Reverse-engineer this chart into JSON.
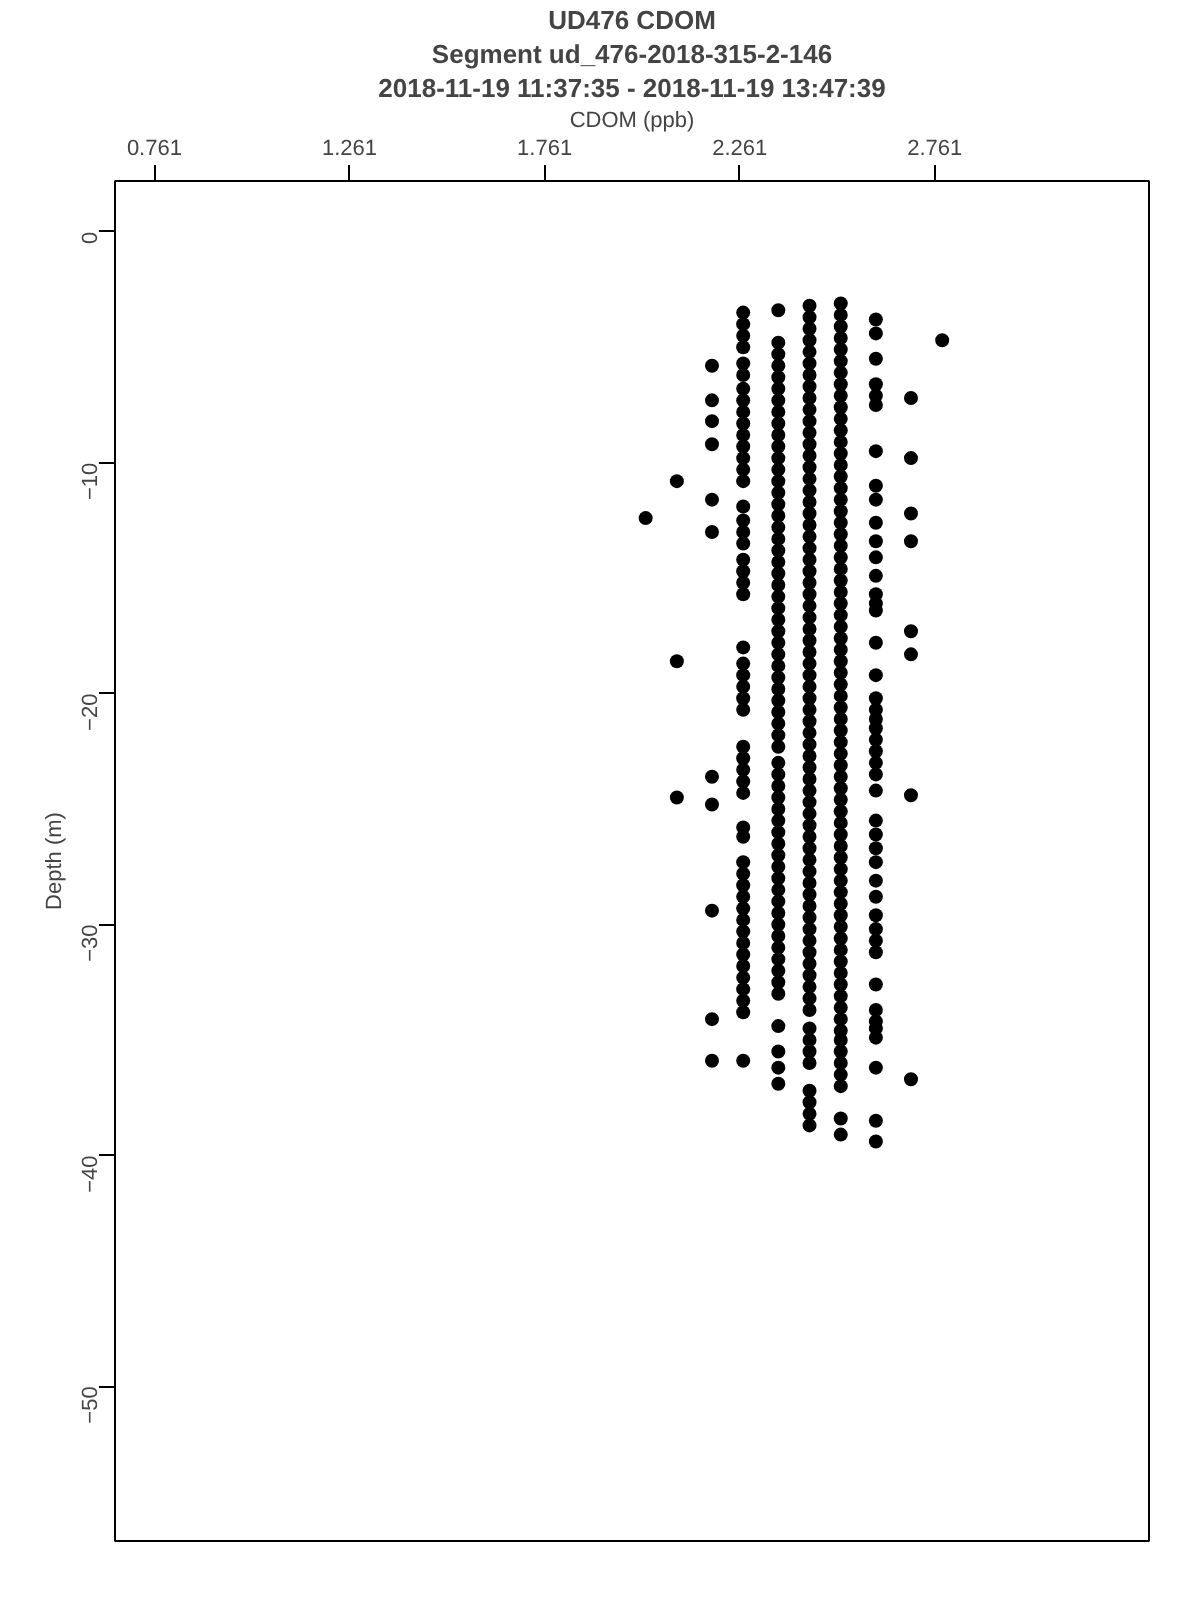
{
  "chart_data": {
    "type": "scatter",
    "title": "UD476 CDOM",
    "subtitle": "Segment ud_476-2018-315-2-146",
    "annotations": [
      "2018-11-19 11:37:35 - 2018-11-19 13:47:39"
    ],
    "xlabel": "CDOM (ppb)",
    "ylabel": "Depth (m)",
    "xlim": [
      0.66,
      3.31
    ],
    "ylim": [
      -56.7,
      2.2
    ],
    "xticks": [
      0.761,
      1.261,
      1.761,
      2.261,
      2.761
    ],
    "yticks": [
      0,
      -10,
      -20,
      -30,
      -40,
      -50
    ],
    "grid": false,
    "marker": "circle",
    "series": [
      {
        "color": "#000000",
        "x": [
          2.44,
          2.44,
          2.44,
          2.44,
          2.44,
          2.44,
          2.44,
          2.44,
          2.44,
          2.44,
          2.44,
          2.44,
          2.44,
          2.44,
          2.44,
          2.44,
          2.44,
          2.44,
          2.44,
          2.44,
          2.44,
          2.44,
          2.44,
          2.44,
          2.44,
          2.44,
          2.44,
          2.44,
          2.44,
          2.44,
          2.44,
          2.44,
          2.44,
          2.44,
          2.44,
          2.44,
          2.44,
          2.44,
          2.44,
          2.44,
          2.44,
          2.44,
          2.44,
          2.44,
          2.44,
          2.44,
          2.44,
          2.44,
          2.44,
          2.44,
          2.44,
          2.44,
          2.44,
          2.44,
          2.44,
          2.44,
          2.44,
          2.44,
          2.44,
          2.44,
          2.44,
          2.44,
          2.44,
          2.44,
          2.44,
          2.44,
          2.44,
          2.44,
          2.44,
          2.44
        ],
        "values": [
          -3.2,
          -3.7,
          -4.2,
          -4.7,
          -5.2,
          -5.7,
          -6.2,
          -6.7,
          -7.2,
          -7.7,
          -8.2,
          -8.7,
          -9.2,
          -9.7,
          -10.2,
          -10.7,
          -11.2,
          -11.7,
          -12.2,
          -12.7,
          -13.2,
          -13.7,
          -14.2,
          -14.7,
          -15.2,
          -15.7,
          -16.2,
          -16.7,
          -17.2,
          -17.7,
          -18.2,
          -18.7,
          -19.2,
          -19.7,
          -20.2,
          -20.7,
          -21.2,
          -21.7,
          -22.2,
          -22.7,
          -23.2,
          -23.7,
          -24.2,
          -24.7,
          -25.2,
          -25.7,
          -26.2,
          -26.7,
          -27.2,
          -27.7,
          -28.2,
          -28.7,
          -29.2,
          -29.7,
          -30.2,
          -30.7,
          -31.2,
          -31.7,
          -32.2,
          -32.7,
          -33.2,
          -33.7,
          -34.5,
          -35,
          -35.5,
          -36,
          -37.2,
          -37.7,
          -38.2,
          -38.7
        ]
      },
      {
        "color": "#000000",
        "x": [
          2.52,
          2.52,
          2.52,
          2.52,
          2.52,
          2.52,
          2.52,
          2.52,
          2.52,
          2.52,
          2.52,
          2.52,
          2.52,
          2.52,
          2.52,
          2.52,
          2.52,
          2.52,
          2.52,
          2.52,
          2.52,
          2.52,
          2.52,
          2.52,
          2.52,
          2.52,
          2.52,
          2.52,
          2.52,
          2.52,
          2.52,
          2.52,
          2.52,
          2.52,
          2.52,
          2.52,
          2.52,
          2.52,
          2.52,
          2.52,
          2.52,
          2.52,
          2.52,
          2.52,
          2.52,
          2.52,
          2.52,
          2.52,
          2.52,
          2.52,
          2.52,
          2.52,
          2.52,
          2.52,
          2.52,
          2.52,
          2.52,
          2.52,
          2.52,
          2.52,
          2.52,
          2.52,
          2.52,
          2.52,
          2.52,
          2.52,
          2.52,
          2.52,
          2.52,
          2.52,
          2.52
        ],
        "values": [
          -3.1,
          -3.6,
          -4.1,
          -4.6,
          -5.1,
          -5.6,
          -6.1,
          -6.6,
          -7.1,
          -7.6,
          -8.1,
          -8.6,
          -9.1,
          -9.6,
          -10.1,
          -10.6,
          -11.1,
          -11.6,
          -12.1,
          -12.6,
          -13.1,
          -13.6,
          -14.1,
          -14.6,
          -15.1,
          -15.6,
          -16.1,
          -16.6,
          -17.1,
          -17.6,
          -18.1,
          -18.6,
          -19.1,
          -19.6,
          -20.1,
          -20.6,
          -21.1,
          -21.6,
          -22.1,
          -22.6,
          -23.1,
          -23.6,
          -24.1,
          -24.6,
          -25.1,
          -25.6,
          -26.1,
          -26.6,
          -27.1,
          -27.6,
          -28.1,
          -28.6,
          -29.1,
          -29.6,
          -30.1,
          -30.6,
          -31.1,
          -31.6,
          -32.1,
          -32.6,
          -33.1,
          -33.6,
          -34.1,
          -34.6,
          -35,
          -35.5,
          -36,
          -36.5,
          -37,
          -38.4,
          -39.1
        ]
      },
      {
        "color": "#000000",
        "x": [
          2.36,
          2.36,
          2.36,
          2.36,
          2.36,
          2.36,
          2.36,
          2.36,
          2.36,
          2.36,
          2.36,
          2.36,
          2.36,
          2.36,
          2.36,
          2.36,
          2.36,
          2.36,
          2.36,
          2.36,
          2.36,
          2.36,
          2.36,
          2.36,
          2.36,
          2.36,
          2.36,
          2.36,
          2.36,
          2.36,
          2.36,
          2.36,
          2.36,
          2.36,
          2.36,
          2.36,
          2.36,
          2.36,
          2.36,
          2.36,
          2.36,
          2.36,
          2.36,
          2.36,
          2.36,
          2.36,
          2.36,
          2.36,
          2.36,
          2.36,
          2.36,
          2.36,
          2.36,
          2.36,
          2.36,
          2.36,
          2.36,
          2.36,
          2.36,
          2.36,
          2.36,
          2.36
        ],
        "values": [
          -3.4,
          -4.8,
          -5.3,
          -5.8,
          -6.3,
          -6.8,
          -7.3,
          -7.8,
          -8.3,
          -8.8,
          -9.3,
          -9.8,
          -10.3,
          -10.8,
          -11.3,
          -11.8,
          -12.3,
          -12.8,
          -13.3,
          -13.8,
          -14.3,
          -14.8,
          -15.3,
          -15.8,
          -16.3,
          -16.8,
          -17.3,
          -17.8,
          -18.3,
          -18.8,
          -19.3,
          -19.8,
          -20.3,
          -20.8,
          -21.3,
          -21.8,
          -22.3,
          -23.0,
          -23.5,
          -24.0,
          -24.5,
          -25.0,
          -25.5,
          -26.0,
          -26.5,
          -27.0,
          -27.5,
          -28.0,
          -28.5,
          -29.0,
          -29.5,
          -30.0,
          -30.5,
          -31.0,
          -31.5,
          -32.0,
          -32.5,
          -33.0,
          -34.4,
          -35.5,
          -36.2,
          -36.9
        ]
      },
      {
        "color": "#000000",
        "x": [
          2.27,
          2.27,
          2.27,
          2.27,
          2.27,
          2.27,
          2.27,
          2.27,
          2.27,
          2.27,
          2.27,
          2.27,
          2.27,
          2.27,
          2.27,
          2.27,
          2.27,
          2.27,
          2.27,
          2.27,
          2.27,
          2.27,
          2.27,
          2.27,
          2.27,
          2.27,
          2.27,
          2.27,
          2.27,
          2.27,
          2.27,
          2.27,
          2.27,
          2.27,
          2.27,
          2.27,
          2.27,
          2.27,
          2.27,
          2.27,
          2.27,
          2.27,
          2.27,
          2.27,
          2.27,
          2.27,
          2.27,
          2.27,
          2.27,
          2.27,
          2.27
        ],
        "values": [
          -3.5,
          -4,
          -4.5,
          -5,
          -5.7,
          -6.2,
          -6.8,
          -7.3,
          -7.8,
          -8.3,
          -8.8,
          -9.3,
          -9.8,
          -10.3,
          -10.8,
          -11.9,
          -12.5,
          -13,
          -13.5,
          -14.2,
          -14.7,
          -15.2,
          -15.7,
          -18,
          -18.7,
          -19.2,
          -19.7,
          -20.2,
          -20.7,
          -22.3,
          -22.8,
          -23.3,
          -23.8,
          -24.3,
          -25.8,
          -26.2,
          -27.3,
          -27.8,
          -28.3,
          -28.8,
          -29.3,
          -29.8,
          -30.3,
          -30.8,
          -31.3,
          -31.8,
          -32.3,
          -32.8,
          -33.3,
          -33.8,
          -35.9
        ]
      },
      {
        "color": "#000000",
        "x": [
          2.61,
          2.61,
          2.61,
          2.61,
          2.61,
          2.61,
          2.61,
          2.61,
          2.61,
          2.61,
          2.61,
          2.61,
          2.61,
          2.61,
          2.61,
          2.61,
          2.61,
          2.61,
          2.61,
          2.61,
          2.61,
          2.61,
          2.61,
          2.61,
          2.61,
          2.61,
          2.61,
          2.61,
          2.61,
          2.61,
          2.61,
          2.61,
          2.61,
          2.61,
          2.61,
          2.61,
          2.61,
          2.61,
          2.61,
          2.61,
          2.61,
          2.61,
          2.61,
          2.61,
          2.61
        ],
        "values": [
          -3.8,
          -4.4,
          -6.6,
          -7.1,
          -7.5,
          -11,
          -11.6,
          -12.6,
          -13.4,
          -14.1,
          -14.9,
          -15.7,
          -16.1,
          -16.4,
          -17.8,
          -19.2,
          -20.2,
          -20.7,
          -21.1,
          -21.5,
          -22,
          -22.5,
          -23,
          -23.5,
          -24.2,
          -25.5,
          -26.1,
          -26.7,
          -27.3,
          -28.1,
          -28.8,
          -29.6,
          -30.2,
          -30.7,
          -31.2,
          -32.6,
          -33.7,
          -34.2,
          -34.5,
          -34.9,
          -36.2,
          -38.5,
          -39.4,
          -5.5,
          -9.5
        ]
      },
      {
        "color": "#000000",
        "x": [
          2.19,
          2.19,
          2.19,
          2.19,
          2.19,
          2.19,
          2.19,
          2.19,
          2.19,
          2.19,
          2.19,
          2.1,
          2.1,
          2.1,
          2.02,
          2.7,
          2.7,
          2.7,
          2.7,
          2.7,
          2.7,
          2.7,
          2.7,
          2.78
        ],
        "values": [
          -5.8,
          -7.3,
          -8.2,
          -9.2,
          -11.6,
          -13,
          -23.6,
          -24.8,
          -29.4,
          -34.1,
          -35.9,
          -10.8,
          -18.6,
          -24.5,
          -12.4,
          -7.2,
          -9.8,
          -12.2,
          -13.4,
          -17.3,
          -18.3,
          -24.4,
          -36.7,
          -4.7
        ]
      }
    ]
  }
}
